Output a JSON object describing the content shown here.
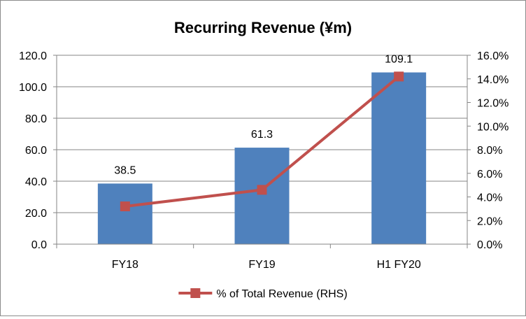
{
  "chart_data": {
    "type": "bar",
    "title": "Recurring Revenue (¥m)",
    "categories": [
      "FY18",
      "FY19",
      "H1 FY20"
    ],
    "series": [
      {
        "type": "bar",
        "axis": "left",
        "values": [
          38.5,
          61.3,
          109.1
        ],
        "data_labels": [
          "38.5",
          "61.3",
          "109.1"
        ],
        "color": "#4f81bd"
      },
      {
        "type": "line",
        "axis": "right",
        "name": "% of Total Revenue (RHS)",
        "values": [
          3.2,
          4.6,
          14.2
        ],
        "color": "#c0504d"
      }
    ],
    "y_left": {
      "min": 0,
      "max": 120,
      "step": 20,
      "tick_labels": [
        "0.0",
        "20.0",
        "40.0",
        "60.0",
        "80.0",
        "100.0",
        "120.0"
      ]
    },
    "y_right": {
      "min": 0,
      "max": 16,
      "step": 2,
      "tick_labels": [
        "0.0%",
        "2.0%",
        "4.0%",
        "6.0%",
        "8.0%",
        "10.0%",
        "12.0%",
        "14.0%",
        "16.0%"
      ]
    },
    "grid": true,
    "legend": "bottom"
  }
}
